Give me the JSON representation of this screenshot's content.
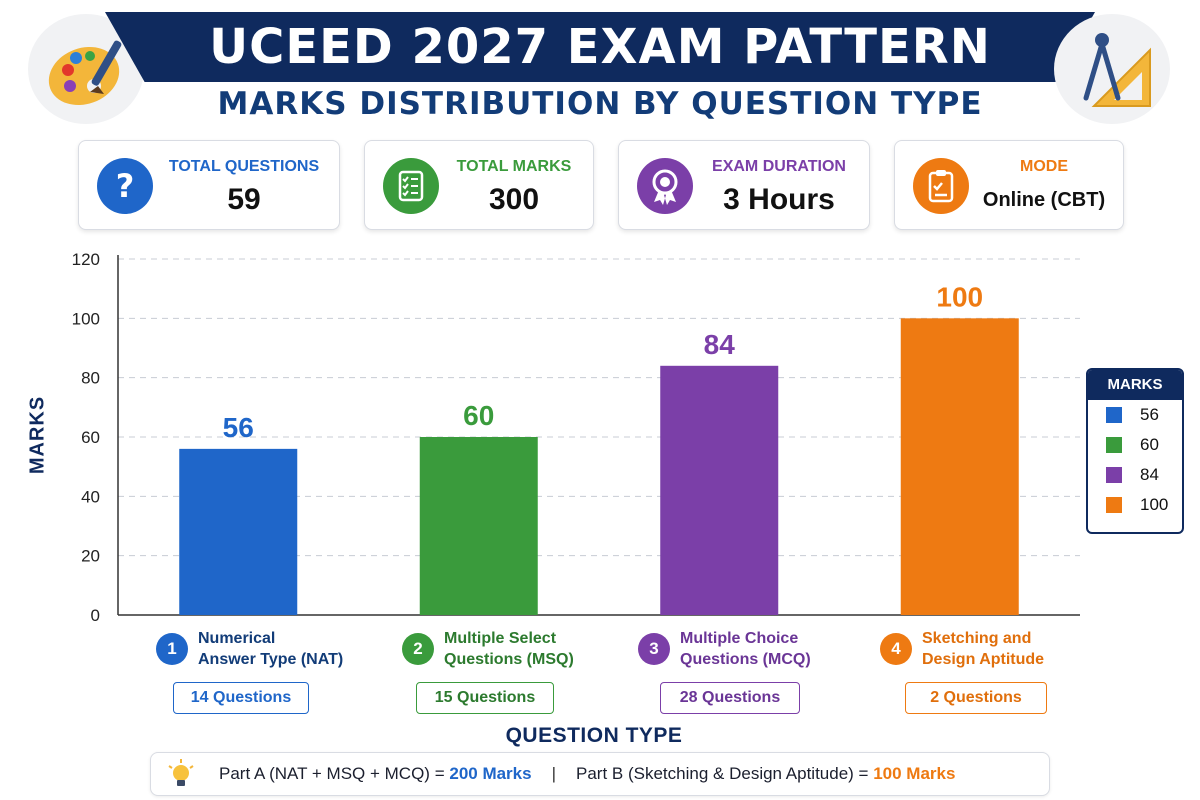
{
  "header": {
    "title": "UCEED 2027 EXAM PATTERN",
    "subtitle": "MARKS DISTRIBUTION BY QUESTION TYPE",
    "left_icon": "palette-brush-icon",
    "right_icon": "compass-set-square-icon"
  },
  "stats": [
    {
      "label": "TOTAL QUESTIONS",
      "value": "59",
      "icon": "question-mark-icon",
      "color": "#1f66c9"
    },
    {
      "label": "TOTAL MARKS",
      "value": "300",
      "icon": "checklist-icon",
      "color": "#3a9b3c"
    },
    {
      "label": "EXAM DURATION",
      "value": "3 Hours",
      "icon": "medal-icon",
      "color": "#7b3fa8"
    },
    {
      "label": "MODE",
      "value": "Online (CBT)",
      "icon": "clipboard-icon",
      "color": "#ee7a12"
    }
  ],
  "chart_data": {
    "type": "bar",
    "title": "",
    "xlabel": "QUESTION TYPE",
    "ylabel": "MARKS",
    "ylim": [
      0,
      120
    ],
    "yticks": [
      "0",
      "20",
      "40",
      "60",
      "80",
      "100",
      "120"
    ],
    "grid": true,
    "categories": [
      "Numerical\nAnswer Type (NAT)",
      "Multiple Select\nQuestions (MSQ)",
      "Multiple Choice\nQuestions (MCQ)",
      "Sketching and\nDesign Aptitude"
    ],
    "values": [
      56,
      60,
      84,
      100
    ],
    "data_labels": [
      "56",
      "60",
      "84",
      "100"
    ],
    "colors": [
      "#1f66c9",
      "#3a9b3c",
      "#7b3fa8",
      "#ee7a12"
    ],
    "legend": {
      "title": "MARKS",
      "placement": "right",
      "entries": [
        "56",
        "60",
        "84",
        "100"
      ]
    }
  },
  "categories_info": [
    {
      "number": "1",
      "questions": "14 Questions"
    },
    {
      "number": "2",
      "questions": "15 Questions"
    },
    {
      "number": "3",
      "questions": "28 Questions"
    },
    {
      "number": "4",
      "questions": "2 Questions"
    }
  ],
  "footer": {
    "icon": "lightbulb-icon",
    "part_a_text": "Part A (NAT + MSQ + MCQ) = ",
    "part_a_marks": "200 Marks",
    "separator": "|",
    "part_b_text": "Part B (Sketching & Design Aptitude) = ",
    "part_b_marks": "100 Marks"
  }
}
